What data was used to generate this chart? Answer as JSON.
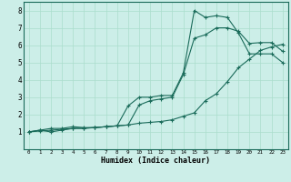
{
  "xlabel": "Humidex (Indice chaleur)",
  "bg_color": "#cceee8",
  "line_color": "#1a6b5a",
  "grid_color": "#aaddcc",
  "xlim": [
    -0.5,
    23.5
  ],
  "ylim": [
    0,
    8.5
  ],
  "xticks": [
    0,
    1,
    2,
    3,
    4,
    5,
    6,
    7,
    8,
    9,
    10,
    11,
    12,
    13,
    14,
    15,
    16,
    17,
    18,
    19,
    20,
    21,
    22,
    23
  ],
  "yticks": [
    1,
    2,
    3,
    4,
    5,
    6,
    7,
    8
  ],
  "line1_x": [
    0,
    1,
    2,
    3,
    4,
    5,
    6,
    7,
    8,
    9,
    10,
    11,
    12,
    13,
    14,
    15,
    16,
    17,
    18,
    19,
    20,
    21,
    22,
    23
  ],
  "line1_y": [
    1.0,
    1.1,
    1.0,
    1.1,
    1.2,
    1.2,
    1.25,
    1.3,
    1.35,
    1.4,
    2.55,
    2.8,
    2.9,
    3.0,
    4.3,
    6.4,
    6.6,
    7.0,
    7.0,
    6.8,
    6.1,
    6.15,
    6.15,
    5.65
  ],
  "line2_x": [
    0,
    1,
    2,
    3,
    4,
    5,
    6,
    7,
    8,
    9,
    10,
    11,
    12,
    13,
    14,
    15,
    16,
    17,
    18,
    19,
    20,
    21,
    22,
    23
  ],
  "line2_y": [
    1.0,
    1.1,
    1.2,
    1.2,
    1.3,
    1.25,
    1.25,
    1.3,
    1.35,
    2.5,
    3.0,
    3.0,
    3.1,
    3.1,
    4.4,
    8.0,
    7.6,
    7.7,
    7.6,
    6.7,
    5.5,
    5.5,
    5.5,
    5.0
  ],
  "line3_x": [
    0,
    1,
    2,
    3,
    4,
    5,
    6,
    7,
    8,
    9,
    10,
    11,
    12,
    13,
    14,
    15,
    16,
    17,
    18,
    19,
    20,
    21,
    22,
    23
  ],
  "line3_y": [
    1.0,
    1.05,
    1.1,
    1.15,
    1.2,
    1.22,
    1.25,
    1.3,
    1.35,
    1.4,
    1.5,
    1.55,
    1.6,
    1.7,
    1.9,
    2.1,
    2.8,
    3.2,
    3.9,
    4.7,
    5.2,
    5.7,
    5.9,
    6.05
  ]
}
